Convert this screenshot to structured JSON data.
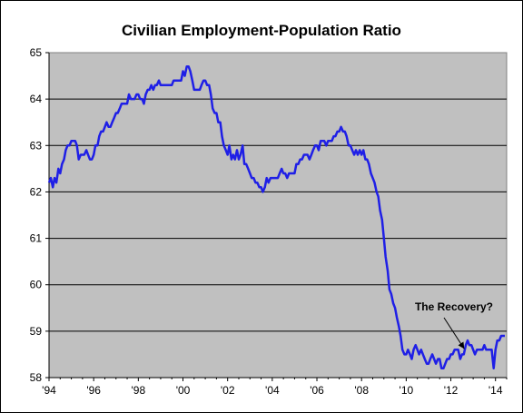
{
  "chart_data": {
    "type": "line",
    "title": "Civilian Employment-Population Ratio",
    "xlabel": "",
    "ylabel": "",
    "xlim": [
      1994,
      2014.5
    ],
    "ylim": [
      58,
      65
    ],
    "yticks": [
      58,
      59,
      60,
      61,
      62,
      63,
      64,
      65
    ],
    "xticks": [
      1994,
      1996,
      1998,
      2000,
      2002,
      2004,
      2006,
      2008,
      2010,
      2012,
      2014
    ],
    "xtick_labels": [
      "'94",
      "'96",
      "'98",
      "'00",
      "'02",
      "'04",
      "'06",
      "'08",
      "'10",
      "'12",
      "'14"
    ],
    "grid": "horizontal",
    "legend": "none",
    "colors": {
      "line": "#1f1fe6",
      "plot_bg": "#c0c0c0",
      "grid": "#000000"
    },
    "annotation": {
      "text": "The Recovery?",
      "x": 2012.6,
      "y": 58.62
    },
    "series": [
      {
        "x": [
          1994.0,
          1994.08,
          1994.17,
          1994.25,
          1994.33,
          1994.42,
          1994.5,
          1994.58,
          1994.67,
          1994.75,
          1994.83,
          1994.92,
          1995.0,
          1995.08,
          1995.17,
          1995.25,
          1995.33,
          1995.42,
          1995.5,
          1995.58,
          1995.67,
          1995.75,
          1995.83,
          1995.92,
          1996.0,
          1996.08,
          1996.17,
          1996.25,
          1996.33,
          1996.42,
          1996.5,
          1996.58,
          1996.67,
          1996.75,
          1996.83,
          1996.92,
          1997.0,
          1997.08,
          1997.17,
          1997.25,
          1997.33,
          1997.42,
          1997.5,
          1997.58,
          1997.67,
          1997.75,
          1997.83,
          1997.92,
          1998.0,
          1998.08,
          1998.17,
          1998.25,
          1998.33,
          1998.42,
          1998.5,
          1998.58,
          1998.67,
          1998.75,
          1998.83,
          1998.92,
          1999.0,
          1999.08,
          1999.17,
          1999.25,
          1999.33,
          1999.42,
          1999.5,
          1999.58,
          1999.67,
          1999.75,
          1999.83,
          1999.92,
          2000.0,
          2000.08,
          2000.17,
          2000.25,
          2000.33,
          2000.42,
          2000.5,
          2000.58,
          2000.67,
          2000.75,
          2000.83,
          2000.92,
          2001.0,
          2001.08,
          2001.17,
          2001.25,
          2001.33,
          2001.42,
          2001.5,
          2001.58,
          2001.67,
          2001.75,
          2001.83,
          2001.92,
          2002.0,
          2002.08,
          2002.17,
          2002.25,
          2002.33,
          2002.42,
          2002.5,
          2002.58,
          2002.67,
          2002.75,
          2002.83,
          2002.92,
          2003.0,
          2003.08,
          2003.17,
          2003.25,
          2003.33,
          2003.42,
          2003.5,
          2003.58,
          2003.67,
          2003.75,
          2003.83,
          2003.92,
          2004.0,
          2004.08,
          2004.17,
          2004.25,
          2004.33,
          2004.42,
          2004.5,
          2004.58,
          2004.67,
          2004.75,
          2004.83,
          2004.92,
          2005.0,
          2005.08,
          2005.17,
          2005.25,
          2005.33,
          2005.42,
          2005.5,
          2005.58,
          2005.67,
          2005.75,
          2005.83,
          2005.92,
          2006.0,
          2006.08,
          2006.17,
          2006.25,
          2006.33,
          2006.42,
          2006.5,
          2006.58,
          2006.67,
          2006.75,
          2006.83,
          2006.92,
          2007.0,
          2007.08,
          2007.17,
          2007.25,
          2007.33,
          2007.42,
          2007.5,
          2007.58,
          2007.67,
          2007.75,
          2007.83,
          2007.92,
          2008.0,
          2008.08,
          2008.17,
          2008.25,
          2008.33,
          2008.42,
          2008.5,
          2008.58,
          2008.67,
          2008.75,
          2008.83,
          2008.92,
          2009.0,
          2009.08,
          2009.17,
          2009.25,
          2009.33,
          2009.42,
          2009.5,
          2009.58,
          2009.67,
          2009.75,
          2009.83,
          2009.92,
          2010.0,
          2010.08,
          2010.17,
          2010.25,
          2010.33,
          2010.42,
          2010.5,
          2010.58,
          2010.67,
          2010.75,
          2010.83,
          2010.92,
          2011.0,
          2011.08,
          2011.17,
          2011.25,
          2011.33,
          2011.42,
          2011.5,
          2011.58,
          2011.67,
          2011.75,
          2011.83,
          2011.92,
          2012.0,
          2012.08,
          2012.17,
          2012.25,
          2012.33,
          2012.42,
          2012.5,
          2012.58,
          2012.67,
          2012.75,
          2012.83,
          2012.92,
          2013.0,
          2013.08,
          2013.17,
          2013.25,
          2013.33,
          2013.42,
          2013.5,
          2013.58,
          2013.67,
          2013.75,
          2013.83,
          2013.92,
          2014.0,
          2014.08,
          2014.17,
          2014.25,
          2014.33,
          2014.42
        ],
        "values": [
          62.2,
          62.3,
          62.1,
          62.3,
          62.2,
          62.5,
          62.4,
          62.6,
          62.7,
          62.9,
          63.0,
          63.0,
          63.1,
          63.1,
          63.1,
          63.0,
          62.7,
          62.8,
          62.8,
          62.8,
          62.9,
          62.8,
          62.7,
          62.7,
          62.8,
          63.0,
          63.0,
          63.2,
          63.3,
          63.3,
          63.4,
          63.5,
          63.4,
          63.4,
          63.5,
          63.6,
          63.7,
          63.7,
          63.8,
          63.9,
          63.9,
          63.9,
          63.9,
          64.1,
          64.0,
          64.0,
          64.0,
          64.1,
          64.1,
          64.0,
          64.0,
          63.9,
          64.1,
          64.2,
          64.2,
          64.3,
          64.2,
          64.3,
          64.3,
          64.4,
          64.3,
          64.3,
          64.3,
          64.3,
          64.3,
          64.3,
          64.3,
          64.4,
          64.4,
          64.4,
          64.4,
          64.4,
          64.6,
          64.5,
          64.7,
          64.7,
          64.6,
          64.4,
          64.2,
          64.2,
          64.2,
          64.2,
          64.3,
          64.4,
          64.4,
          64.3,
          64.3,
          64.1,
          63.8,
          63.7,
          63.7,
          63.5,
          63.5,
          63.2,
          63.0,
          62.9,
          62.8,
          63.0,
          62.7,
          62.8,
          62.7,
          62.9,
          62.7,
          62.8,
          63.0,
          62.6,
          62.6,
          62.5,
          62.4,
          62.3,
          62.3,
          62.2,
          62.2,
          62.1,
          62.1,
          62.0,
          62.1,
          62.3,
          62.2,
          62.3,
          62.3,
          62.3,
          62.3,
          62.3,
          62.4,
          62.5,
          62.4,
          62.4,
          62.3,
          62.4,
          62.4,
          62.4,
          62.4,
          62.6,
          62.6,
          62.7,
          62.7,
          62.8,
          62.8,
          62.8,
          62.7,
          62.8,
          62.9,
          63.0,
          63.0,
          62.9,
          63.1,
          63.1,
          63.1,
          63.0,
          63.1,
          63.1,
          63.1,
          63.2,
          63.2,
          63.3,
          63.3,
          63.4,
          63.3,
          63.3,
          63.2,
          63.0,
          63.0,
          62.9,
          62.8,
          62.9,
          62.8,
          62.9,
          62.8,
          62.9,
          62.7,
          62.7,
          62.6,
          62.4,
          62.3,
          62.2,
          62.0,
          61.9,
          61.6,
          61.4,
          61.0,
          60.6,
          60.3,
          59.9,
          59.8,
          59.6,
          59.5,
          59.3,
          59.1,
          58.9,
          58.6,
          58.5,
          58.5,
          58.6,
          58.5,
          58.4,
          58.6,
          58.7,
          58.6,
          58.5,
          58.6,
          58.5,
          58.4,
          58.3,
          58.3,
          58.4,
          58.5,
          58.4,
          58.3,
          58.4,
          58.4,
          58.2,
          58.2,
          58.3,
          58.4,
          58.4,
          58.5,
          58.5,
          58.6,
          58.6,
          58.6,
          58.4,
          58.5,
          58.5,
          58.7,
          58.8,
          58.7,
          58.7,
          58.6,
          58.5,
          58.6,
          58.6,
          58.6,
          58.6,
          58.7,
          58.6,
          58.6,
          58.6,
          58.6,
          58.2,
          58.6,
          58.8,
          58.8,
          58.9,
          58.9,
          58.9
        ]
      }
    ]
  }
}
